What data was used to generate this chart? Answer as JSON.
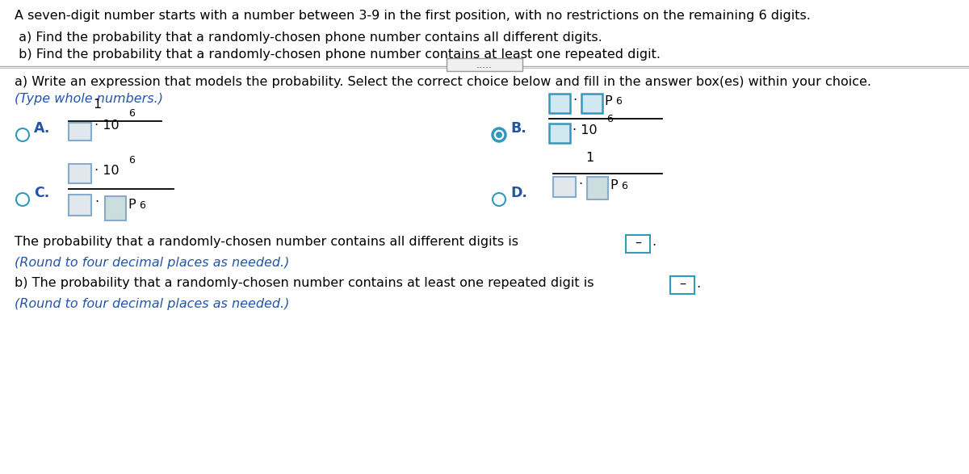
{
  "bg_color": "#ffffff",
  "title_text": "A seven-digit number starts with a number between 3-9 in the first position, with no restrictions on the remaining 6 digits.",
  "part_a_intro": " a) Find the probability that a randomly-chosen phone number contains all different digits.",
  "part_b_intro": " b) Find the probability that a randomly-chosen phone number contains at least one repeated digit.",
  "dots_text": ".....",
  "instruction": "a) Write an expression that models the probability. Select the correct choice below and fill in the answer box(es) within your choice.",
  "type_note": "(Type whole numbers.)",
  "prob_a_text": "The probability that a randomly-chosen number contains all different digits is",
  "prob_b_text": "b) The probability that a randomly-chosen number contains at least one repeated digit is",
  "round_note": "(Round to four decimal places as needed.)",
  "black": "#000000",
  "blue_label": "#2255aa",
  "teal_radio": "#3399bb",
  "box_fill_selected": "#d0e8f0",
  "box_border_selected": "#3399bb",
  "box_fill_unsel": "#e0e8ee",
  "box_border_unsel": "#88aacc",
  "box_fill_unsel2": "#ccdddd",
  "answer_box_border": "#3399bb",
  "line_color": "#888888",
  "dots_box_border": "#999999",
  "italic_blue": "#2255aa",
  "text_fontsize": 11.5,
  "label_fontsize": 12.5
}
